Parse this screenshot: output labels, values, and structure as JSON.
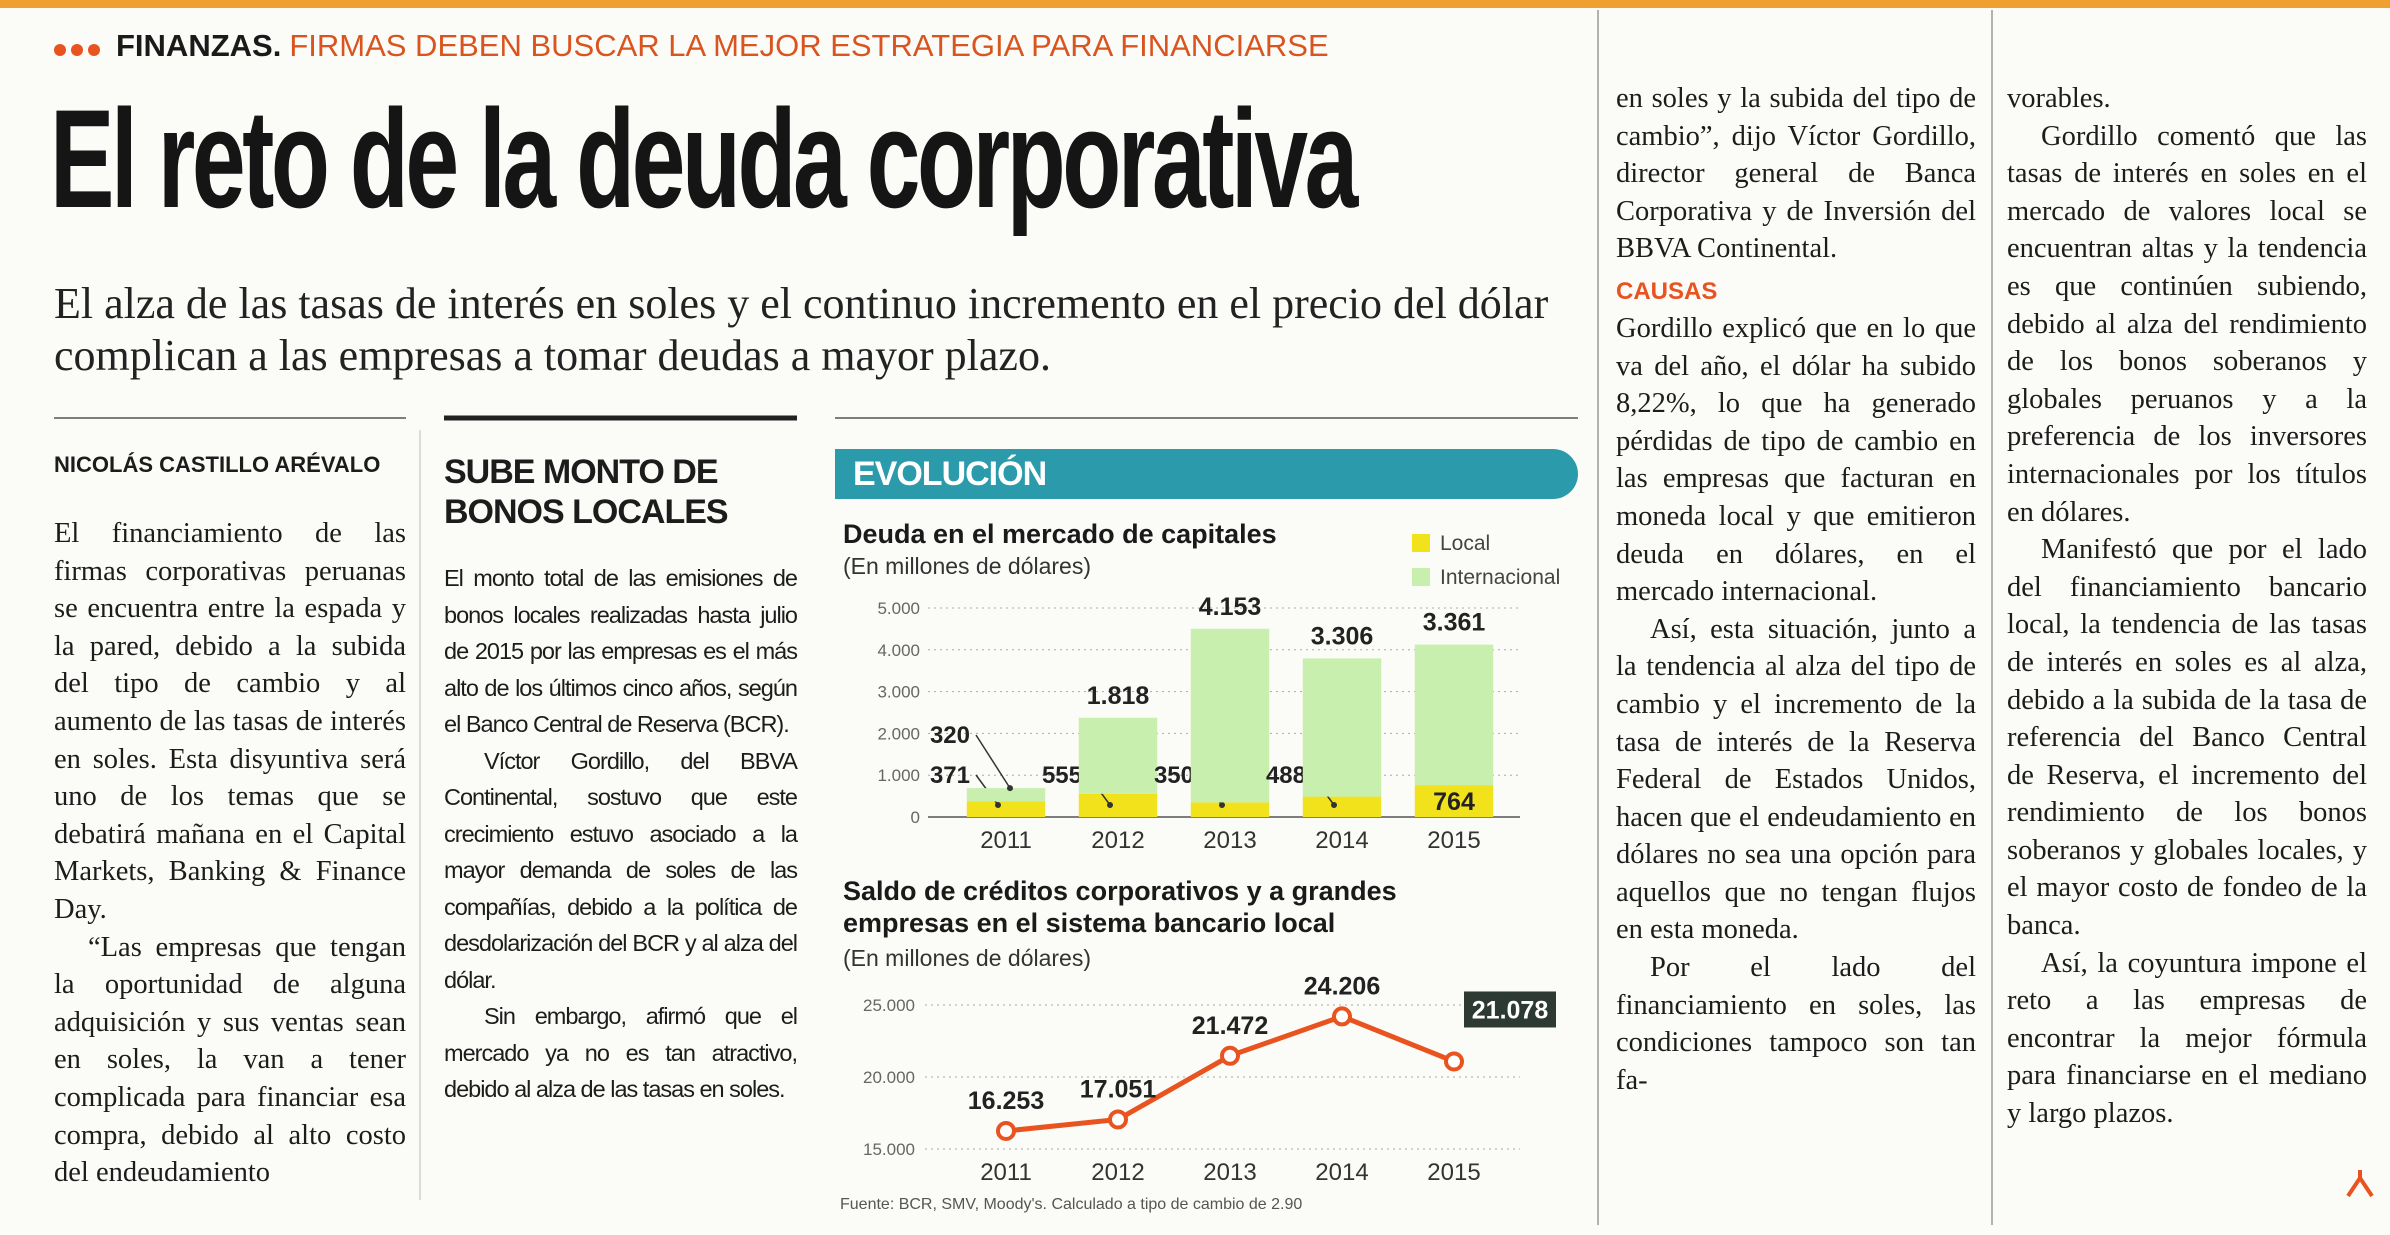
{
  "header": {
    "section": "FINANZAS.",
    "kicker": "FIRMAS DEBEN BUSCAR LA MEJOR ESTRATEGIA PARA FINANCIARSE"
  },
  "title": "El reto de la deuda corporativa",
  "deck": "El alza de las tasas de interés en soles y el continuo incremento en el precio del dólar complican a las empresas a tomar deudas a mayor plazo.",
  "byline": "NICOLÁS CASTILLO ARÉVALO",
  "columns": [
    [
      "El financiamiento de las firmas corporativas peruanas se encuentra entre la espada y la pared, debido a la subida del tipo de cambio y al aumento de las tasas de interés en soles. Esta disyuntiva será uno de los temas que se debatirá mañana en el Capital Markets, Banking & Finance Day.",
      "“Las empresas que tengan la oportunidad de alguna adquisición y sus ventas sean en soles, la van a tener complicada para financiar esa compra, debido al alto costo del endeudamiento"
    ],
    [
      "en soles y la subida del tipo de cambio”, dijo Víctor Gordillo, director general de Banca Corporativa y de Inversión del BBVA Continental.",
      {
        "heading": "CAUSAS"
      },
      "Gordillo explicó que en lo que va del año, el dólar ha subido 8,22%, lo que ha generado pérdidas de tipo de cambio en las empresas que facturan en moneda local y que emitieron deuda en dólares, en el mercado internacional.",
      "Así, esta situación, junto a la tendencia al alza del tipo de cambio y el incremento de la tasa de interés de la Reserva Federal de Estados Unidos, hacen que el endeudamiento en dólares no sea una opción para aquellos que no tengan flujos en esta moneda.",
      "Por el lado del financiamiento en soles, las condiciones tampoco son tan fa-"
    ],
    [
      "vorables.",
      "Gordillo comentó que las tasas de interés en soles en el mercado de valores local se encuentran altas y la tendencia es que continúen subiendo, debido al alza del rendimiento de los bonos soberanos y globales peruanos y a la preferencia de los inversores internacionales por los títulos en dólares.",
      "Manifestó que por el lado del financiamiento bancario local, la tendencia de las tasas de interés en soles es al alza, debido a la subida de la tasa de referencia del Banco Central de Reserva, el incremento del rendimiento de los bonos soberanos y globales locales, y el mayor costo de fondeo de la banca.",
      "Así, la coyuntura impone el reto a las empresas de encontrar la mejor fórmula para financiarse en el mediano y largo plazos."
    ]
  ],
  "sidebar": {
    "title": "SUBE MONTO DE BONOS LOCALES",
    "paragraphs": [
      "El monto total de las emisiones de bonos locales realizadas hasta julio de 2015 por las empresas es el más alto de los últimos cinco años, según el Banco Central de Reserva (BCR).",
      "Víctor Gordillo, del BBVA Continental, sostuvo que este crecimiento estuvo asociado a la mayor demanda de soles de las compañías, debido a la política de desdolarización del BCR y al alza del dólar.",
      "Sin embargo, afirmó que el mercado ya no es tan atractivo, debido al alza de las tasas en soles."
    ]
  },
  "graphic": {
    "label": "EVOLUCIÓN",
    "source": "Fuente: BCR, SMV, Moody's. Calculado a tipo de cambio de 2.90"
  },
  "chart_data": [
    {
      "type": "bar",
      "stacked": true,
      "title": "Deuda en el mercado de capitales",
      "subtitle": "(En millones de dólares)",
      "categories": [
        "2011",
        "2012",
        "2013",
        "2014",
        "2015"
      ],
      "series": [
        {
          "name": "Local",
          "color": "#f2e21c",
          "values": [
            371,
            555,
            350,
            488,
            764
          ]
        },
        {
          "name": "Internacional",
          "color": "#c8efad",
          "values": [
            320,
            1818,
            4153,
            3306,
            3361
          ],
          "value_labels": [
            "320",
            "1.818",
            "4.153",
            "3.306",
            "3.361"
          ]
        }
      ],
      "ylim": [
        0,
        5000
      ],
      "yticks": [
        0,
        {
          "value": 1000,
          "label": "1.000"
        },
        {
          "value": 2000,
          "label": "2.000"
        },
        {
          "value": 3000,
          "label": "3.000"
        },
        {
          "value": 4000,
          "label": "4.000"
        },
        {
          "value": 5000,
          "label": "5.000"
        }
      ],
      "grid": true,
      "legend": "upper right"
    },
    {
      "type": "line",
      "title": "Saldo de créditos corporativos y a grandes empresas en el sistema bancario local",
      "subtitle": "(En millones de dólares)",
      "categories": [
        "2011",
        "2012",
        "2013",
        "2014",
        "2015"
      ],
      "values": [
        16253,
        17051,
        21472,
        24206,
        21078
      ],
      "value_labels": [
        "16.253",
        "17.051",
        "21.472",
        "24.206",
        "21.078"
      ],
      "color": "#e8531f",
      "ylim": [
        15000,
        25000
      ],
      "yticks": [
        {
          "value": 15000,
          "label": "15.000"
        },
        {
          "value": 20000,
          "label": "20.000"
        },
        {
          "value": 25000,
          "label": "25.000"
        }
      ],
      "grid": true
    }
  ]
}
